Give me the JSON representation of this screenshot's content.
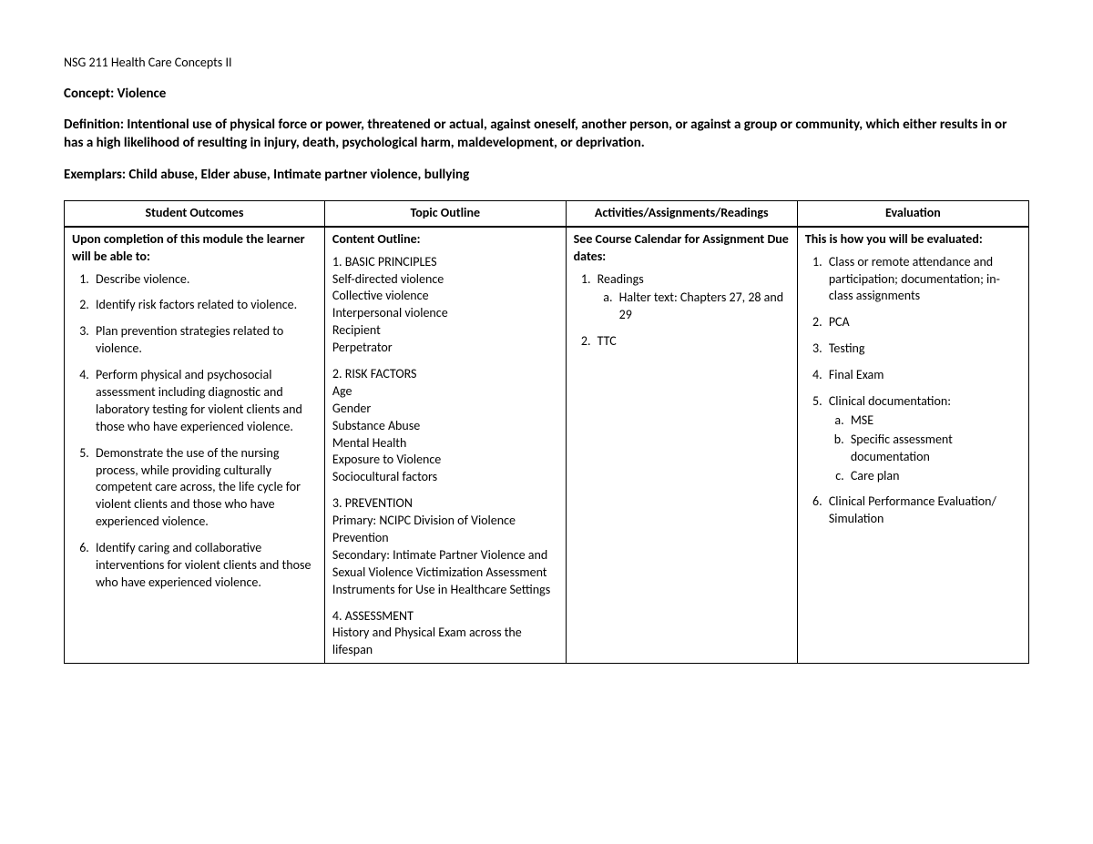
{
  "header": {
    "course": "NSG 211 Health Care Concepts II",
    "concept": "Concept: Violence",
    "definition": "Definition: Intentional use of physical force or power, threatened or actual, against oneself, another person, or against a group or community, which either results in or has a high likelihood of resulting in injury, death, psychological harm, maldevelopment, or deprivation.",
    "exemplars": "Exemplars: Child abuse, Elder abuse, Intimate partner violence, bullying"
  },
  "table": {
    "headers": {
      "c1": "Student Outcomes",
      "c2": "Topic Outline",
      "c3": "Activities/Assignments/Readings",
      "c4": "Evaluation"
    },
    "outcomes": {
      "intro": "Upon completion of this module the learner will be able to:",
      "items": [
        "Describe violence.",
        "Identify risk factors related to violence.",
        "Plan prevention strategies related to violence.",
        "Perform physical and psychosocial assessment including diagnostic and laboratory testing for violent clients and those who have experienced violence.",
        "Demonstrate the use of the nursing process, while providing culturally competent care across, the life cycle for violent clients and those who have experienced violence.",
        "Identify caring and collaborative interventions for violent clients and those who have experienced violence."
      ]
    },
    "outline": {
      "intro": "Content Outline:",
      "sections": [
        {
          "title": "1. BASIC PRINCIPLES",
          "lines": [
            "Self-directed violence",
            "Collective violence",
            "Interpersonal violence",
            "Recipient",
            "Perpetrator"
          ]
        },
        {
          "title": "2. RISK FACTORS",
          "lines": [
            "Age",
            "Gender",
            "Substance Abuse",
            "Mental Health",
            "Exposure to Violence",
            "Sociocultural factors"
          ]
        },
        {
          "title": "3. PREVENTION",
          "lines": [
            "Primary: NCIPC Division of Violence Prevention",
            "Secondary: Intimate Partner Violence and Sexual Violence Victimization Assessment Instruments for Use in Healthcare Settings"
          ]
        },
        {
          "title": "4. ASSESSMENT",
          "lines": [
            "History and Physical Exam across the lifespan"
          ]
        }
      ]
    },
    "activities": {
      "intro": "See Course Calendar for Assignment Due dates:",
      "items": [
        {
          "label": "Readings",
          "sub": [
            "Halter text: Chapters 27, 28 and 29"
          ]
        },
        {
          "label": "TTC"
        }
      ]
    },
    "evaluation": {
      "intro": "This is how you will be evaluated:",
      "items": [
        {
          "label": "Class or remote attendance and participation; documentation; in-class assignments"
        },
        {
          "label": "PCA"
        },
        {
          "label": "Testing"
        },
        {
          "label": "Final Exam"
        },
        {
          "label": "Clinical documentation:",
          "sub": [
            "MSE",
            "Specific assessment documentation",
            "Care plan"
          ]
        },
        {
          "label": "Clinical Performance Evaluation/ Simulation"
        }
      ]
    }
  }
}
